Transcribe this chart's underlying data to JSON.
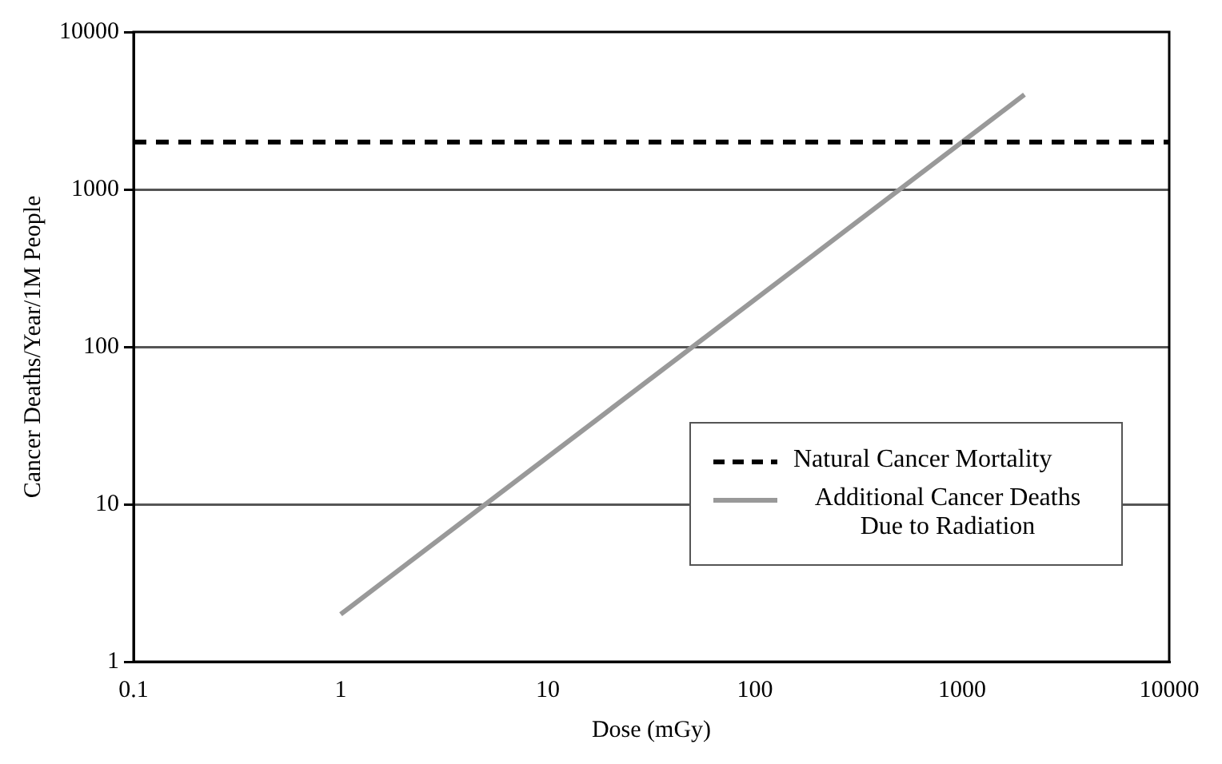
{
  "chart_data": {
    "type": "line",
    "xlabel": "Dose (mGy)",
    "ylabel": "Cancer Deaths/Year/1M People",
    "log": "xy",
    "xlim": [
      0.1,
      10000
    ],
    "ylim": [
      1,
      10000
    ],
    "xticks": [
      0.1,
      1,
      10,
      100,
      1000,
      10000
    ],
    "yticks": [
      1,
      10,
      100,
      1000,
      10000
    ],
    "grid": "y",
    "legend": "bottom right",
    "marker": "none",
    "series": [
      {
        "name": "Natural Cancer Mortality",
        "color": "#000000",
        "line_style": "dashed",
        "x": [
          0.1,
          10000
        ],
        "values": [
          2000,
          2000
        ]
      },
      {
        "name": "Additional Cancer Deaths Due to Radiation",
        "color": "#999999",
        "line_style": "solid",
        "x": [
          1,
          2000
        ],
        "values": [
          2,
          4000
        ]
      }
    ]
  }
}
